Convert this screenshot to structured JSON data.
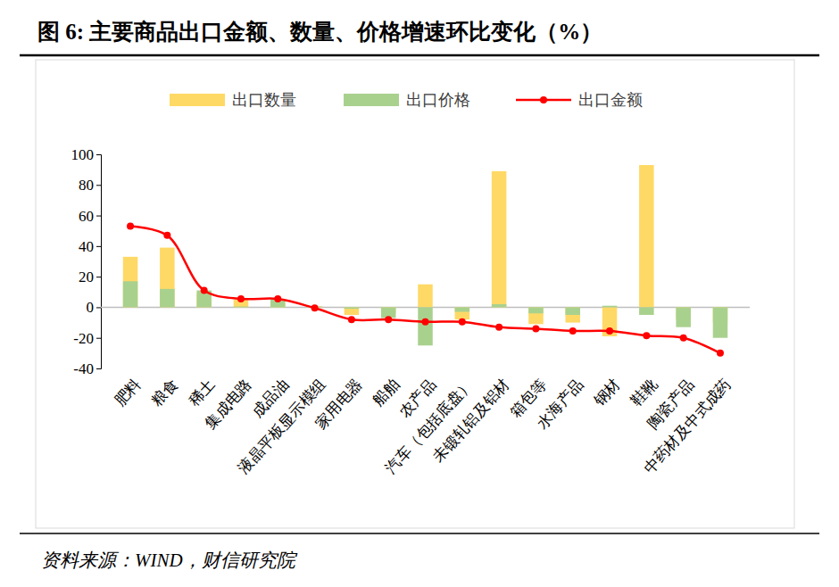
{
  "chart_data": {
    "type": "bar",
    "title": "图 6: 主要商品出口金额、数量、价格增速环比变化（%）",
    "source": "资料来源：WIND，财信研究院",
    "categories": [
      "肥料",
      "粮食",
      "稀土",
      "集成电路",
      "成品油",
      "液晶平板显示模组",
      "家用电器",
      "船舶",
      "农产品",
      "汽车（包括底盘）",
      "未锻轧铝及铝材",
      "箱包等",
      "水海产品",
      "钢材",
      "鞋靴",
      "陶瓷产品",
      "中药材及中式成药"
    ],
    "series": [
      {
        "name": "出口数量",
        "type": "bar",
        "color": "#ffd966",
        "values": [
          33,
          39,
          9,
          5,
          3,
          0.5,
          -5,
          -4,
          15,
          -8,
          89,
          -11,
          -10,
          -19,
          93,
          -8,
          -10
        ]
      },
      {
        "name": "出口价格",
        "type": "bar",
        "color": "#a9d18e",
        "values": [
          17,
          12,
          11,
          0.5,
          5,
          0.5,
          -1,
          -7,
          -25,
          -3,
          2,
          -4,
          -5,
          1,
          -5,
          -13,
          -20
        ]
      },
      {
        "name": "出口金额",
        "type": "line",
        "color": "#ff0000",
        "marker": "circle",
        "line_style": "smooth",
        "values": [
          53,
          47,
          11,
          5.5,
          5.5,
          -0.5,
          -8,
          -8,
          -9.5,
          -9.5,
          -13,
          -14,
          -15.5,
          -15.5,
          -18.5,
          -20,
          -30
        ]
      }
    ],
    "ylim": [
      -40,
      100
    ],
    "yticks": [
      -40,
      -20,
      0,
      20,
      40,
      60,
      80,
      100
    ],
    "grid": false,
    "legend": "top"
  }
}
